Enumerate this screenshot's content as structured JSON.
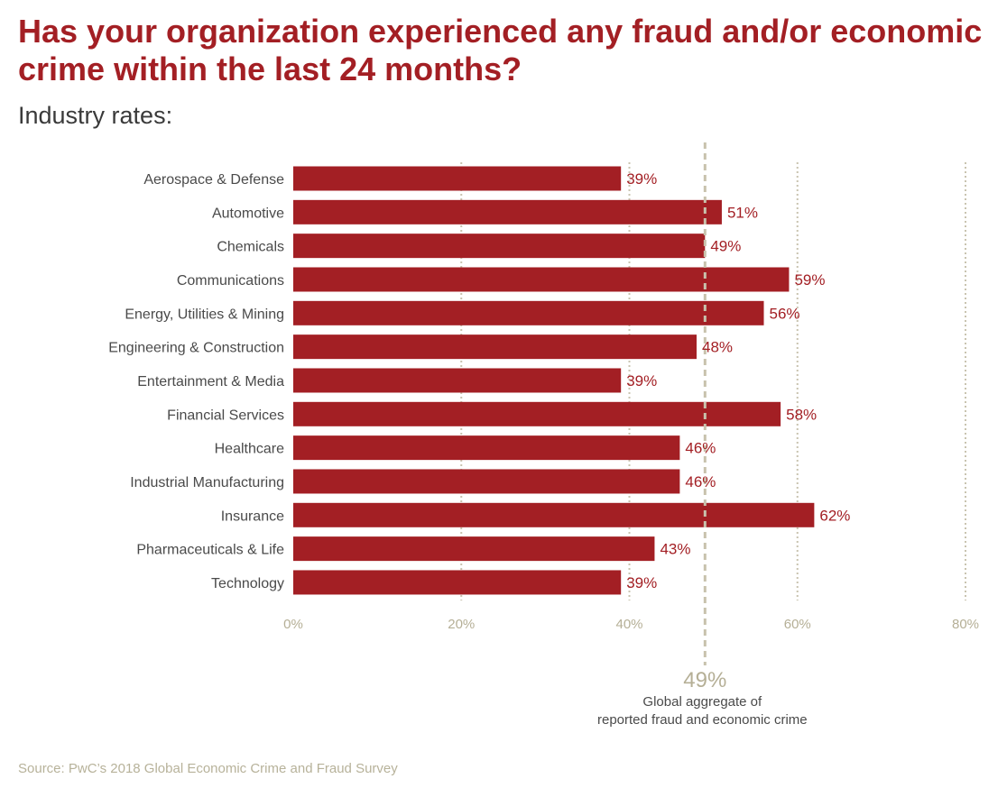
{
  "title": "Has your organization experienced any fraud and/or economic crime within the last 24 months?",
  "subtitle": "Industry rates:",
  "source": "Source: PwC’s 2018 Global Economic Crime and Fraud Survey",
  "colors": {
    "bar": "#a31f24",
    "value_label": "#a31f24",
    "gridline": "#c9c4b0",
    "reference_line": "#c8c2ad",
    "tick_label": "#b5af96"
  },
  "chart_data": {
    "type": "bar",
    "orientation": "horizontal",
    "categories": [
      "Aerospace & Defense",
      "Automotive",
      "Chemicals",
      "Communications",
      "Energy, Utilities & Mining",
      "Engineering & Construction",
      "Entertainment & Media",
      "Financial Services",
      "Healthcare",
      "Industrial Manufacturing",
      "Insurance",
      "Pharmaceuticals & Life",
      "Technology"
    ],
    "values": [
      39,
      51,
      49,
      59,
      56,
      48,
      39,
      58,
      46,
      46,
      62,
      43,
      39
    ],
    "value_labels": [
      "39%",
      "51%",
      "49%",
      "59%",
      "56%",
      "48%",
      "39%",
      "58%",
      "46%",
      "46%",
      "62%",
      "43%",
      "39%"
    ],
    "xlim": [
      0,
      80
    ],
    "xticks": [
      0,
      20,
      40,
      60,
      80
    ],
    "xtick_labels": [
      "0%",
      "20%",
      "40%",
      "60%",
      "80%"
    ],
    "grid": "vertical dotted",
    "reference_line": {
      "value": 49,
      "label": "49%",
      "caption": [
        "Global aggregate of",
        "reported fraud and economic crime"
      ]
    }
  }
}
